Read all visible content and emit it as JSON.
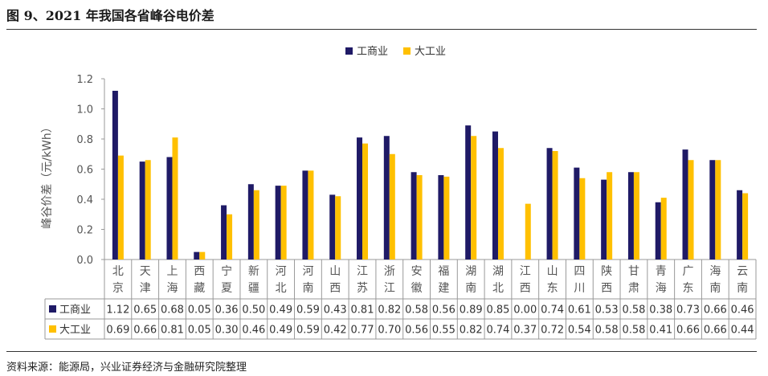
{
  "title": "图 9、2021 年我国各省峰谷电价差",
  "source": "资料来源：能源局，兴业证券经济与金融研究院整理",
  "chart_data": {
    "type": "bar",
    "categories": [
      [
        "北",
        "京"
      ],
      [
        "天",
        "津"
      ],
      [
        "上",
        "海"
      ],
      [
        "西",
        "藏"
      ],
      [
        "宁",
        "夏"
      ],
      [
        "新",
        "疆"
      ],
      [
        "河",
        "北"
      ],
      [
        "河",
        "南"
      ],
      [
        "山",
        "西"
      ],
      [
        "江",
        "苏"
      ],
      [
        "浙",
        "江"
      ],
      [
        "安",
        "徽"
      ],
      [
        "福",
        "建"
      ],
      [
        "湖",
        "南"
      ],
      [
        "湖",
        "北"
      ],
      [
        "江",
        "西"
      ],
      [
        "山",
        "东"
      ],
      [
        "四",
        "川"
      ],
      [
        "陕",
        "西"
      ],
      [
        "甘",
        "肃"
      ],
      [
        "青",
        "海"
      ],
      [
        "广",
        "东"
      ],
      [
        "海",
        "南"
      ],
      [
        "云",
        "南"
      ]
    ],
    "series": [
      {
        "name": "工商业",
        "color": "#1f1a66",
        "values": [
          1.12,
          0.65,
          0.68,
          0.05,
          0.36,
          0.5,
          0.49,
          0.59,
          0.43,
          0.81,
          0.82,
          0.58,
          0.56,
          0.89,
          0.85,
          0.0,
          0.74,
          0.61,
          0.53,
          0.58,
          0.38,
          0.73,
          0.66,
          0.46
        ]
      },
      {
        "name": "大工业",
        "color": "#ffc000",
        "values": [
          0.69,
          0.66,
          0.81,
          0.05,
          0.3,
          0.46,
          0.49,
          0.59,
          0.42,
          0.77,
          0.7,
          0.56,
          0.55,
          0.82,
          0.74,
          0.37,
          0.72,
          0.54,
          0.58,
          0.58,
          0.41,
          0.66,
          0.66,
          0.44
        ]
      }
    ],
    "ylabel": "峰谷价差（元/kWh）",
    "ylim": [
      0,
      1.2
    ],
    "yticks": [
      "0.0",
      "0.2",
      "0.4",
      "0.6",
      "0.8",
      "1.0",
      "1.2"
    ],
    "legend_position": "top-center",
    "grid": false
  }
}
